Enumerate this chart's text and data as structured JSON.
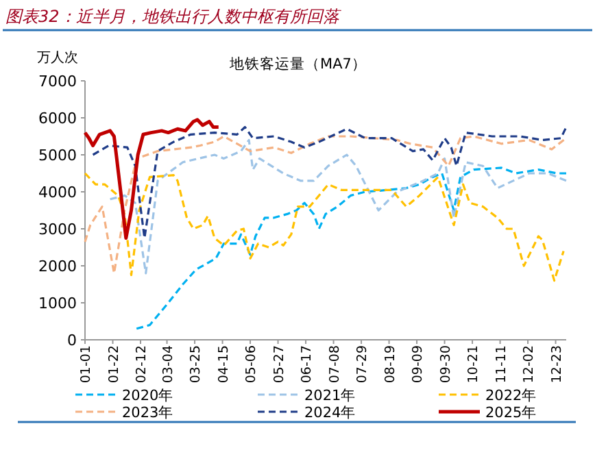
{
  "chart_data": {
    "type": "line",
    "title": "图表32：近半月，地铁出行人数中枢有所回落",
    "subtitle": "地铁客运量（MA7）",
    "ylabel": "万人次",
    "xlim": [
      "--01-01",
      "--12-31"
    ],
    "xticks": [
      {
        "value": "--01-01",
        "label": "01-01"
      },
      {
        "value": "--01-22",
        "label": "01-22"
      },
      {
        "value": "--02-12",
        "label": "02-12"
      },
      {
        "value": "--03-04",
        "label": "03-04"
      },
      {
        "value": "--03-25",
        "label": "03-25"
      },
      {
        "value": "--04-15",
        "label": "04-15"
      },
      {
        "value": "--05-06",
        "label": "05-06"
      },
      {
        "value": "--05-27",
        "label": "05-27"
      },
      {
        "value": "--06-17",
        "label": "06-17"
      },
      {
        "value": "--07-08",
        "label": "07-08"
      },
      {
        "value": "--07-29",
        "label": "07-29"
      },
      {
        "value": "--08-19",
        "label": "08-19"
      },
      {
        "value": "--09-09",
        "label": "09-09"
      },
      {
        "value": "--09-30",
        "label": "09-30"
      },
      {
        "value": "--10-21",
        "label": "10-21"
      },
      {
        "value": "--11-11",
        "label": "11-11"
      },
      {
        "value": "--12-02",
        "label": "12-02"
      },
      {
        "value": "--12-23",
        "label": "12-23"
      }
    ],
    "ylim": [
      0,
      7000
    ],
    "yticks": [
      0,
      1000,
      2000,
      3000,
      4000,
      5000,
      6000,
      7000
    ],
    "grid": false,
    "legend": "bottom",
    "series": [
      {
        "name": "2020年",
        "color": "#00b0f0",
        "line_style": "dashed",
        "x": [
          "--02-09",
          "--02-19",
          "--03-05",
          "--03-16",
          "--03-26",
          "--04-05",
          "--04-10",
          "--04-16",
          "--04-26",
          "--04-29",
          "--05-06",
          "--05-10",
          "--05-17",
          "--05-24",
          "--06-03",
          "--06-10",
          "--06-16",
          "--06-23",
          "--06-27",
          "--07-02",
          "--07-11",
          "--07-21",
          "--08-01",
          "--08-18",
          "--09-01",
          "--09-11",
          "--09-21",
          "--09-28",
          "--10-07",
          "--10-12",
          "--10-22",
          "--11-12",
          "--11-23",
          "--12-10",
          "--12-24",
          "--12-31"
        ],
        "values": [
          300,
          400,
          1000,
          1500,
          1900,
          2100,
          2200,
          2600,
          2600,
          2850,
          2300,
          2800,
          3300,
          3300,
          3400,
          3500,
          3700,
          3400,
          3000,
          3400,
          3600,
          3900,
          4000,
          4050,
          4100,
          4200,
          4400,
          4500,
          3500,
          4400,
          4600,
          4650,
          4500,
          4600,
          4500,
          4500
        ]
      },
      {
        "name": "2021年",
        "color": "#9dc3e6",
        "line_style": "dashed",
        "x": [
          "--01-20",
          "--01-31",
          "--02-08",
          "--02-16",
          "--02-25",
          "--03-16",
          "--04-09",
          "--04-16",
          "--04-29",
          "--05-05",
          "--05-08",
          "--05-13",
          "--05-31",
          "--06-13",
          "--06-23",
          "--07-04",
          "--07-18",
          "--07-25",
          "--08-11",
          "--08-25",
          "--09-14",
          "--09-25",
          "--09-30",
          "--10-07",
          "--10-16",
          "--10-29",
          "--11-09",
          "--12-03",
          "--12-17",
          "--12-31"
        ],
        "values": [
          3800,
          3900,
          3700,
          1800,
          4300,
          4800,
          5000,
          4900,
          5100,
          5400,
          4600,
          4900,
          4500,
          4300,
          4300,
          4700,
          5000,
          4700,
          3500,
          4000,
          4300,
          4500,
          4900,
          3300,
          4800,
          4700,
          4100,
          4500,
          4500,
          4300
        ]
      },
      {
        "name": "2022年",
        "color": "#ffc000",
        "line_style": "dashed",
        "x": [
          "--01-01",
          "--01-09",
          "--01-16",
          "--01-26",
          "--01-31",
          "--02-05",
          "--02-11",
          "--02-19",
          "--03-09",
          "--03-12",
          "--03-19",
          "--03-24",
          "--03-31",
          "--04-04",
          "--04-09",
          "--04-16",
          "--04-26",
          "--05-01",
          "--05-06",
          "--05-12",
          "--05-20",
          "--05-27",
          "--05-31",
          "--06-06",
          "--06-11",
          "--06-20",
          "--06-27",
          "--07-04",
          "--07-14",
          "--08-01",
          "--08-21",
          "--09-01",
          "--09-11",
          "--09-25",
          "--10-07",
          "--10-14",
          "--10-19",
          "--10-29",
          "--11-09",
          "--11-16",
          "--11-21",
          "--11-29",
          "--12-10",
          "--12-13",
          "--12-22",
          "--12-29"
        ],
        "values": [
          4500,
          4200,
          4200,
          3900,
          3400,
          1750,
          3500,
          4400,
          4450,
          4300,
          3300,
          3000,
          3100,
          3350,
          2750,
          2550,
          2950,
          3000,
          2200,
          2600,
          2500,
          2650,
          2550,
          2850,
          3600,
          3600,
          3900,
          4200,
          4050,
          4050,
          4050,
          3600,
          3900,
          4400,
          3100,
          4200,
          3700,
          3600,
          3300,
          3000,
          3000,
          2000,
          2800,
          2700,
          1600,
          2400
        ]
      },
      {
        "name": "2023年",
        "color": "#f4b183",
        "line_style": "dashed",
        "x": [
          "--01-01",
          "--01-05",
          "--01-14",
          "--01-23",
          "--01-31",
          "--02-09",
          "--02-25",
          "--03-22",
          "--03-29",
          "--04-09",
          "--04-16",
          "--05-06",
          "--05-24",
          "--06-06",
          "--06-20",
          "--07-04",
          "--07-21",
          "--08-25",
          "--09-04",
          "--09-21",
          "--10-03",
          "--10-12",
          "--10-22",
          "--11-12",
          "--12-03",
          "--12-20",
          "--12-31"
        ],
        "values": [
          2650,
          3100,
          3600,
          1800,
          3500,
          4900,
          5100,
          5200,
          5250,
          5350,
          5500,
          5100,
          5200,
          5050,
          5300,
          5500,
          5500,
          5400,
          5300,
          5200,
          4700,
          5450,
          5500,
          5300,
          5400,
          5150,
          5450
        ]
      },
      {
        "name": "2024年",
        "color": "#1f3c88",
        "line_style": "dashed",
        "x": [
          "--01-07",
          "--01-19",
          "--02-02",
          "--02-08",
          "--02-15",
          "--02-19",
          "--02-25",
          "--03-09",
          "--03-22",
          "--04-09",
          "--04-26",
          "--05-02",
          "--05-08",
          "--05-24",
          "--06-06",
          "--06-16",
          "--06-27",
          "--07-18",
          "--08-01",
          "--08-21",
          "--09-06",
          "--09-14",
          "--09-21",
          "--09-30",
          "--10-05",
          "--10-09",
          "--10-16",
          "--11-05",
          "--11-26",
          "--12-13",
          "--12-27",
          "--12-31"
        ],
        "values": [
          5000,
          5250,
          5200,
          4700,
          2750,
          3700,
          5100,
          5350,
          5550,
          5600,
          5550,
          5750,
          5450,
          5500,
          5350,
          5200,
          5350,
          5700,
          5450,
          5450,
          5100,
          5150,
          4850,
          5450,
          5200,
          4700,
          5600,
          5500,
          5500,
          5400,
          5450,
          5750
        ]
      },
      {
        "name": "2025年",
        "color": "#c00000",
        "line_style": "solid",
        "x": [
          "--01-01",
          "--01-04",
          "--01-07",
          "--01-12",
          "--01-20",
          "--01-23",
          "--01-28",
          "--02-01",
          "--02-05",
          "--02-10",
          "--02-14",
          "--02-20",
          "--02-28",
          "--03-05",
          "--03-12",
          "--03-18",
          "--03-24",
          "--03-27",
          "--03-31",
          "--04-05",
          "--04-08",
          "--04-12"
        ],
        "values": [
          5600,
          5450,
          5250,
          5550,
          5650,
          5500,
          4000,
          2750,
          3500,
          5000,
          5550,
          5600,
          5650,
          5600,
          5700,
          5650,
          5900,
          5950,
          5800,
          5900,
          5750,
          5750
        ]
      }
    ]
  }
}
